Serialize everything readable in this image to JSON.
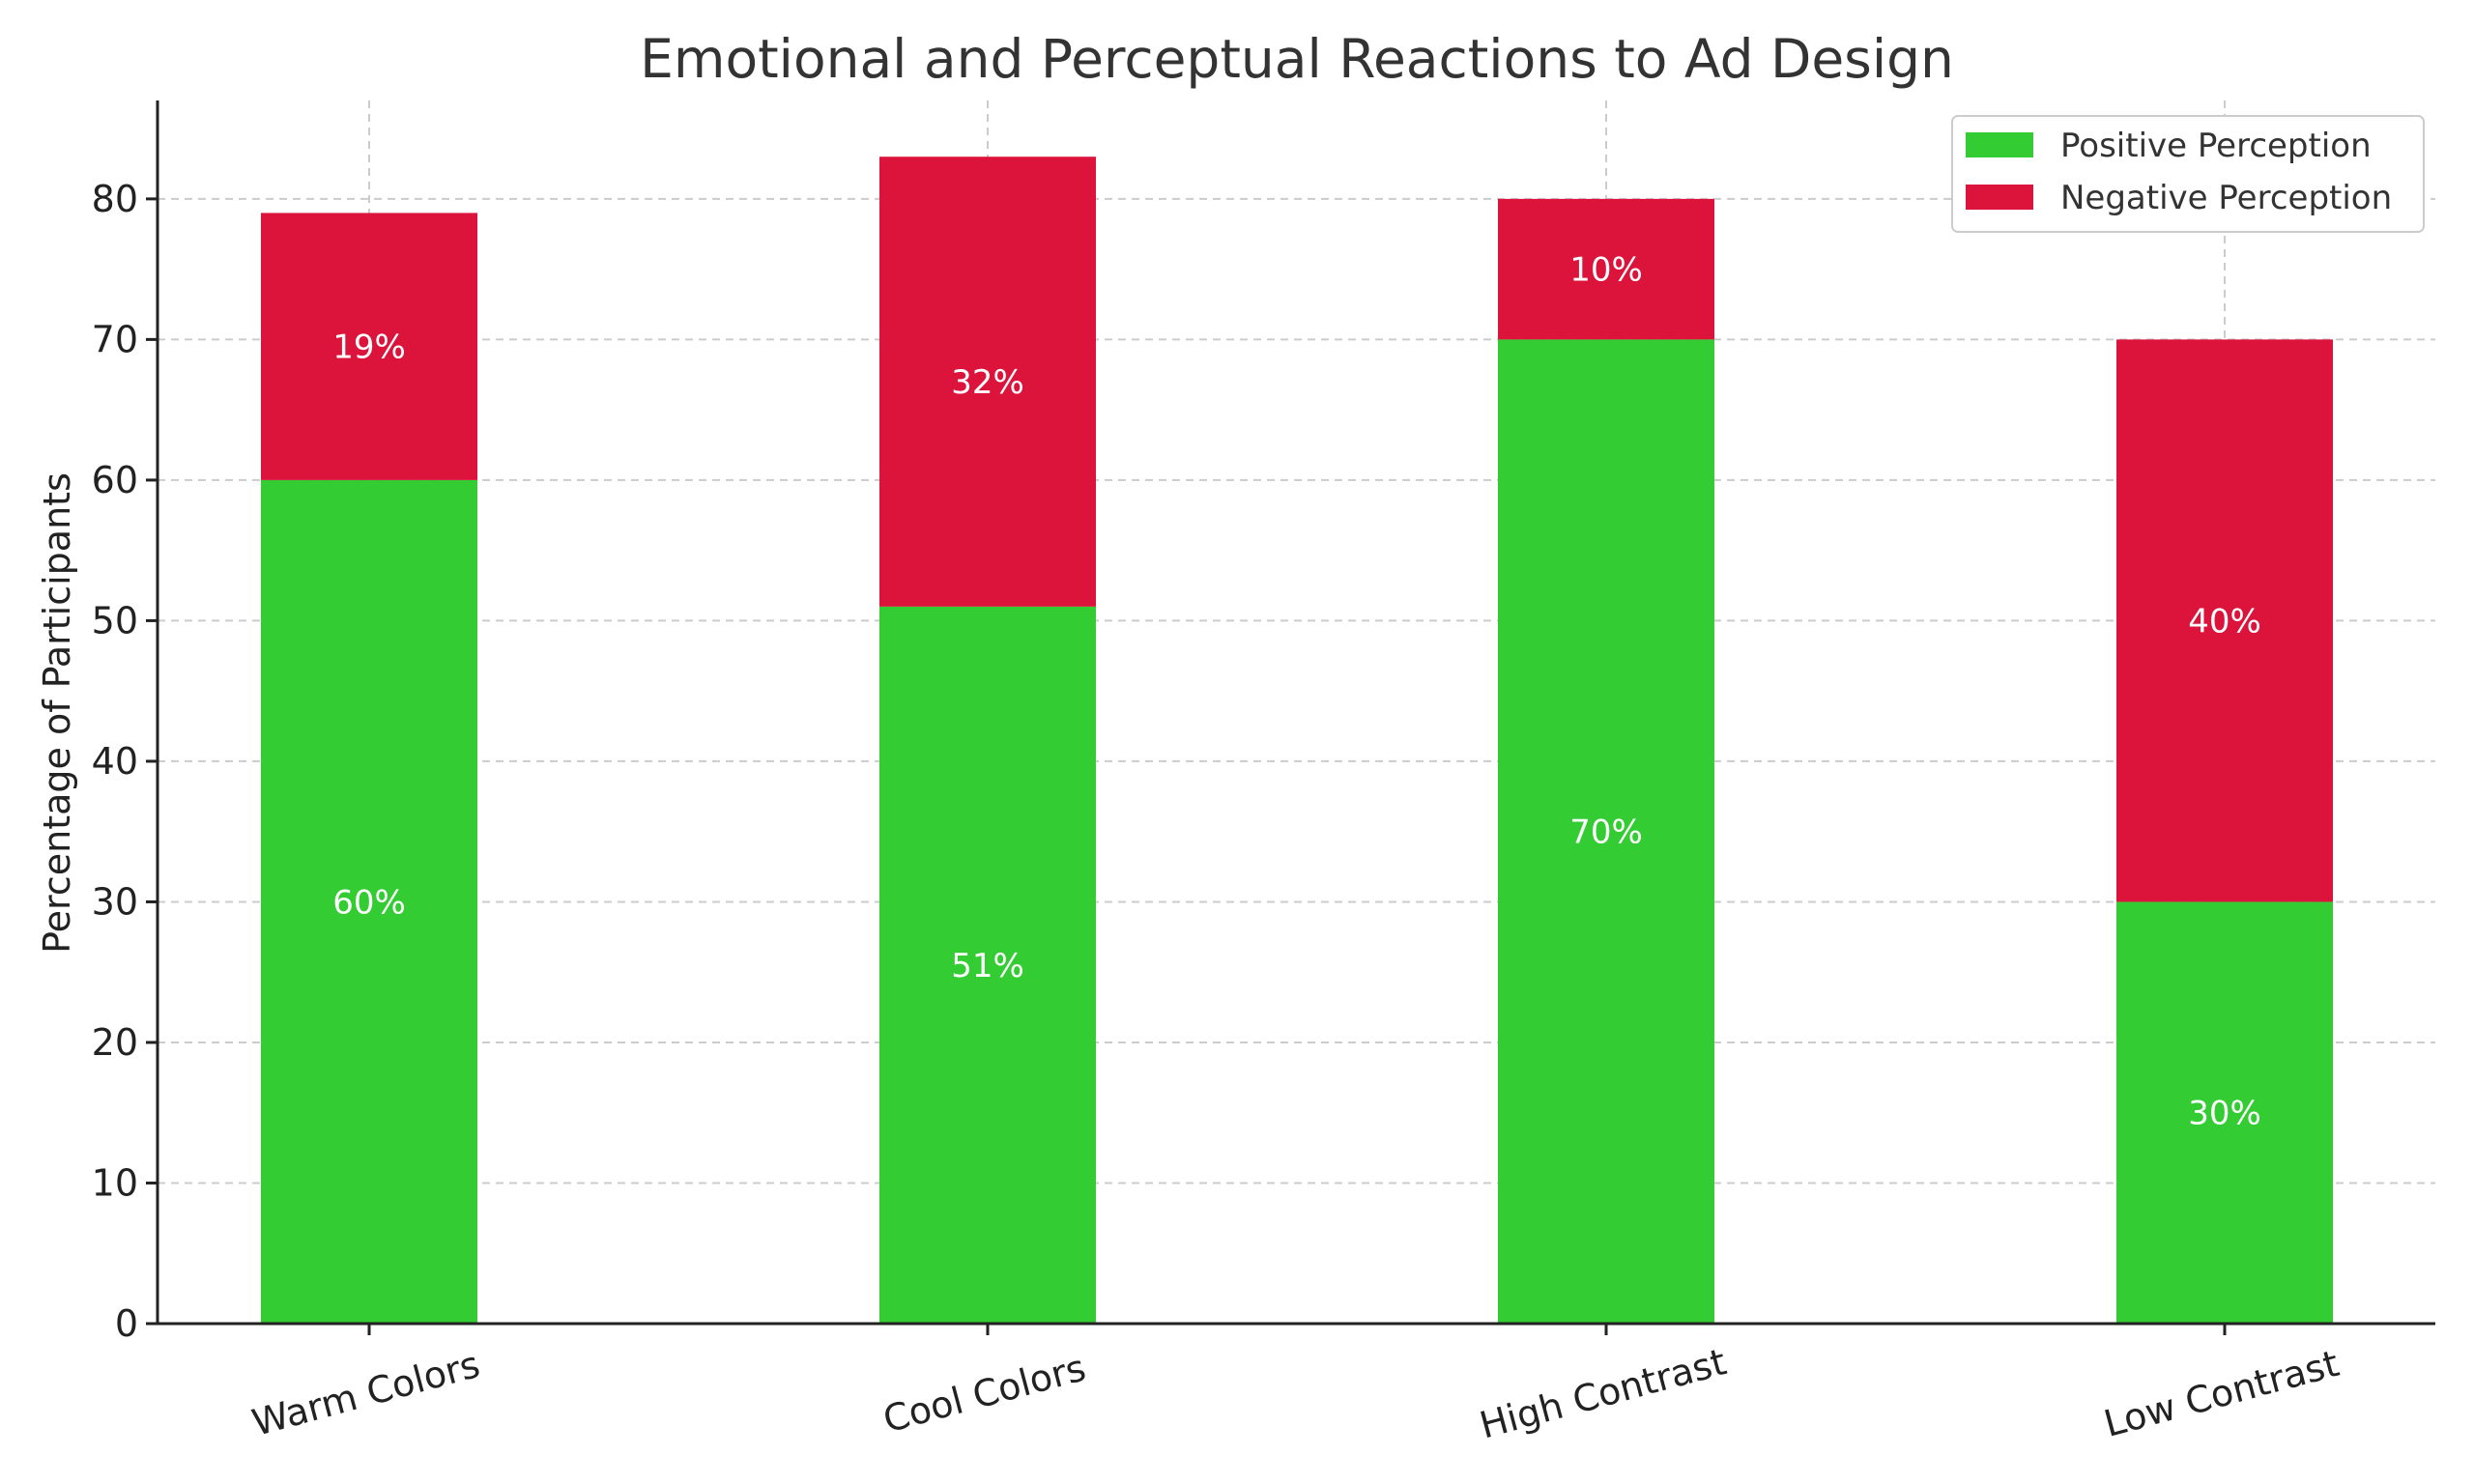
{
  "chart_data": {
    "type": "bar",
    "stacked": true,
    "title": "Emotional and Perceptual Reactions to Ad Design",
    "xlabel": "",
    "ylabel": "Percentage of Participants",
    "categories": [
      "Warm Colors",
      "Cool Colors",
      "High Contrast",
      "Low Contrast"
    ],
    "series": [
      {
        "name": "Positive Perception",
        "values": [
          60,
          51,
          70,
          30
        ],
        "color": "#33cc33"
      },
      {
        "name": "Negative Perception",
        "values": [
          19,
          32,
          10,
          40
        ],
        "color": "#dc143c"
      }
    ],
    "data_labels": [
      [
        "60%",
        "51%",
        "70%",
        "30%"
      ],
      [
        "19%",
        "32%",
        "10%",
        "40%"
      ]
    ],
    "ylim": [
      0,
      87
    ],
    "yticks": [
      0,
      10,
      20,
      30,
      40,
      50,
      60,
      70,
      80
    ],
    "grid": true,
    "legend": "top-right"
  }
}
